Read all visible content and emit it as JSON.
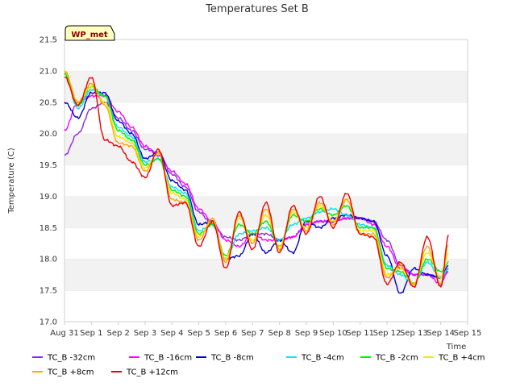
{
  "chart_data": {
    "type": "line",
    "title": "Temperatures Set B",
    "xlabel": "Time",
    "ylabel": "Temperature (C)",
    "ylim": [
      17.0,
      21.5
    ],
    "yticks": [
      "17.0",
      "17.5",
      "18.0",
      "18.5",
      "19.0",
      "19.5",
      "20.0",
      "20.5",
      "21.0",
      "21.5"
    ],
    "xlim": [
      0,
      15
    ],
    "xticks": [
      "Aug 31",
      "Sep 1",
      "Sep 2",
      "Sep 3",
      "Sep 4",
      "Sep 5",
      "Sep 6",
      "Sep 7",
      "Sep 8",
      "Sep 9",
      "Sep 10",
      "Sep 11",
      "Sep 12",
      "Sep 13",
      "Sep 14",
      "Sep 15"
    ],
    "grid": "horizontal bands",
    "legend_placement": "bottom",
    "badge": "WP_met",
    "x": [
      0.0,
      0.5,
      1.0,
      1.5,
      2.0,
      2.5,
      3.0,
      3.5,
      4.0,
      4.5,
      5.0,
      5.5,
      6.0,
      6.5,
      7.0,
      7.5,
      8.0,
      8.5,
      9.0,
      9.5,
      10.0,
      10.5,
      11.0,
      11.5,
      12.0,
      12.5,
      13.0,
      13.5,
      14.0,
      14.3
    ],
    "series": [
      {
        "name": "TC_B -32cm",
        "color": "#8a2be2",
        "values": [
          19.65,
          20.0,
          20.4,
          20.5,
          20.25,
          20.05,
          19.75,
          19.7,
          19.35,
          19.15,
          18.75,
          18.55,
          18.35,
          18.3,
          18.4,
          18.4,
          18.3,
          18.35,
          18.55,
          18.6,
          18.6,
          18.65,
          18.65,
          18.6,
          18.3,
          17.9,
          17.75,
          17.75,
          17.7,
          17.8
        ]
      },
      {
        "name": "TC_B -16cm",
        "color": "#ff00ff",
        "values": [
          20.05,
          20.5,
          20.6,
          20.6,
          20.35,
          20.1,
          19.8,
          19.65,
          19.4,
          19.2,
          18.8,
          18.6,
          18.3,
          18.2,
          18.4,
          18.3,
          18.3,
          18.35,
          18.55,
          18.6,
          18.6,
          18.65,
          18.65,
          18.55,
          18.2,
          17.85,
          17.75,
          17.75,
          17.6,
          17.85
        ]
      },
      {
        "name": "TC_B -8cm",
        "color": "#0000cd",
        "values": [
          20.5,
          20.25,
          20.65,
          20.65,
          20.2,
          20.0,
          19.6,
          19.7,
          19.25,
          19.1,
          18.55,
          18.6,
          18.0,
          18.05,
          18.4,
          18.1,
          18.3,
          18.1,
          18.6,
          18.5,
          18.65,
          18.7,
          18.65,
          18.6,
          18.05,
          17.45,
          17.85,
          17.75,
          17.7,
          17.9
        ]
      },
      {
        "name": "TC_B -4cm",
        "color": "#00e5ee",
        "values": [
          20.95,
          20.4,
          20.7,
          20.6,
          20.1,
          19.95,
          19.55,
          19.6,
          19.15,
          19.05,
          18.45,
          18.55,
          18.0,
          18.4,
          18.45,
          18.5,
          18.3,
          18.55,
          18.65,
          18.75,
          18.8,
          18.7,
          18.55,
          18.5,
          17.9,
          17.75,
          17.6,
          17.95,
          17.7,
          17.85
        ]
      },
      {
        "name": "TC_B -2cm",
        "color": "#00ee00",
        "values": [
          20.95,
          20.45,
          20.75,
          20.6,
          20.05,
          19.9,
          19.5,
          19.6,
          19.1,
          19.0,
          18.4,
          18.55,
          18.05,
          18.55,
          18.4,
          18.6,
          18.2,
          18.7,
          18.6,
          18.8,
          18.7,
          18.85,
          18.5,
          18.5,
          17.85,
          17.8,
          17.6,
          18.0,
          17.8,
          17.95
        ]
      },
      {
        "name": "TC_B +4cm",
        "color": "#f5e600",
        "values": [
          21.0,
          20.5,
          20.75,
          20.5,
          19.95,
          19.85,
          19.45,
          19.7,
          19.05,
          18.95,
          18.35,
          18.6,
          18.0,
          18.65,
          18.3,
          18.7,
          18.2,
          18.75,
          18.5,
          18.85,
          18.6,
          18.95,
          18.45,
          18.45,
          17.75,
          17.85,
          17.6,
          18.1,
          17.7,
          18.1
        ]
      },
      {
        "name": "TC_B +8cm",
        "color": "#ffa500",
        "values": [
          21.0,
          20.5,
          20.8,
          20.45,
          19.85,
          19.8,
          19.4,
          19.7,
          18.95,
          18.9,
          18.3,
          18.65,
          17.95,
          18.7,
          18.25,
          18.8,
          18.15,
          18.8,
          18.45,
          18.9,
          18.55,
          18.95,
          18.4,
          18.4,
          17.7,
          17.9,
          17.6,
          18.2,
          17.6,
          18.25
        ]
      },
      {
        "name": "TC_B +12cm",
        "color": "#ee0000",
        "values": [
          20.9,
          20.45,
          20.9,
          19.9,
          19.8,
          19.55,
          19.3,
          19.75,
          18.85,
          18.9,
          18.2,
          18.6,
          17.85,
          18.75,
          18.15,
          18.9,
          18.1,
          18.85,
          18.4,
          19.0,
          18.5,
          19.05,
          18.4,
          18.35,
          17.6,
          17.95,
          17.55,
          18.35,
          17.55,
          18.4
        ]
      }
    ]
  }
}
